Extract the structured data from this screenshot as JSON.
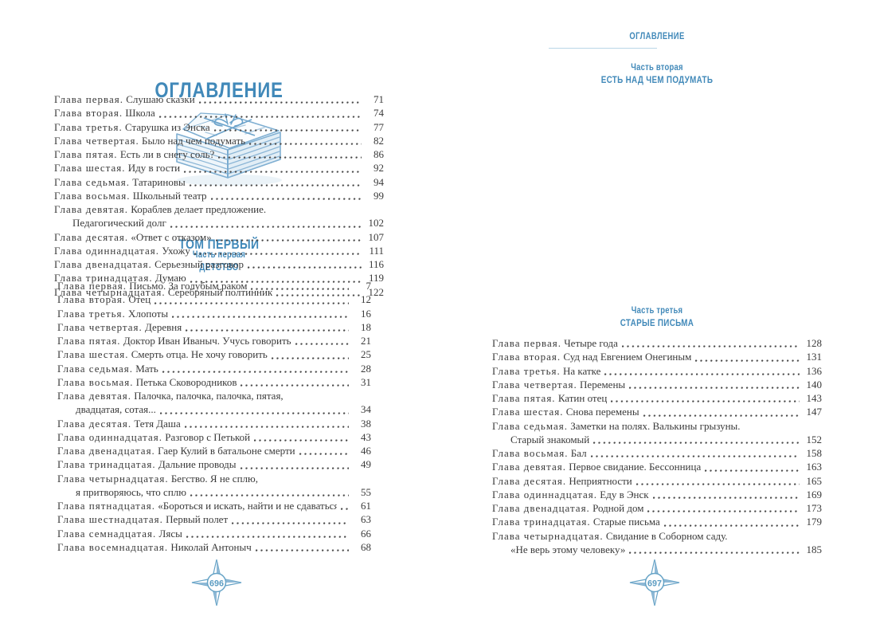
{
  "colors": {
    "heading_blue": "#4189b9",
    "body_text": "#3a3a3a",
    "ornament_blue": "#66a3c6",
    "underline_blue": "#b9d6e6",
    "illustration_blue": "#7fafd2"
  },
  "left_page": {
    "title": "ОГЛАВЛЕНИЕ",
    "illustration": "stack-of-letters-tied-with-string",
    "volume_title": "ТОМ ПЕРВЫЙ",
    "part": {
      "label": "Часть первая",
      "title": "ДЕТСТВО"
    },
    "entries": [
      {
        "label": "Глава первая.",
        "title": "Письмо. За голубым раком",
        "page": "7"
      },
      {
        "label": "Глава вторая.",
        "title": "Отец",
        "page": "12"
      },
      {
        "label": "Глава третья.",
        "title": "Хлопоты",
        "page": "16"
      },
      {
        "label": "Глава четвертая.",
        "title": "Деревня",
        "page": "18"
      },
      {
        "label": "Глава пятая.",
        "title": "Доктор Иван Иваныч. Учусь говорить",
        "page": "21"
      },
      {
        "label": "Глава шестая.",
        "title": "Смерть отца. Не хочу говорить",
        "page": "25"
      },
      {
        "label": "Глава седьмая.",
        "title": "Мать",
        "page": "28"
      },
      {
        "label": "Глава восьмая.",
        "title": "Петька Сковородников",
        "page": "31"
      },
      {
        "label": "Глава девятая.",
        "title": "Палочка, палочка, палочка, пятая,",
        "title2": "двадцатая, сотая...",
        "page": "34"
      },
      {
        "label": "Глава десятая.",
        "title": "Тетя Даша",
        "page": "38"
      },
      {
        "label": "Глава одиннадцатая.",
        "title": "Разговор с Петькой",
        "page": "43"
      },
      {
        "label": "Глава двенадцатая.",
        "title": "Гаер Кулий в батальоне смерти",
        "page": "46"
      },
      {
        "label": "Глава тринадцатая.",
        "title": "Дальние проводы",
        "page": "49"
      },
      {
        "label": "Глава четырнадцатая.",
        "title": "Бегство. Я не сплю,",
        "title2": "я притворяюсь, что сплю",
        "page": "55"
      },
      {
        "label": "Глава пятнадцатая.",
        "title": "«Бороться и искать, найти и не сдаваться»",
        "page": "61"
      },
      {
        "label": "Глава шестнадцатая.",
        "title": "Первый полет",
        "page": "63"
      },
      {
        "label": "Глава семнадцатая.",
        "title": "Лясы",
        "page": "66"
      },
      {
        "label": "Глава восемнадцатая.",
        "title": "Николай Антоныч",
        "page": "68"
      }
    ],
    "folio": "696"
  },
  "right_page": {
    "running_head": "ОГЛАВЛЕНИЕ",
    "part2": {
      "label": "Часть вторая",
      "title": "ЕСТЬ НАД ЧЕМ ПОДУМАТЬ",
      "entries": [
        {
          "label": "Глава первая.",
          "title": "Слушаю сказки",
          "page": "71"
        },
        {
          "label": "Глава вторая.",
          "title": "Школа",
          "page": "74"
        },
        {
          "label": "Глава третья.",
          "title": "Старушка из Энска",
          "page": "77"
        },
        {
          "label": "Глава четвертая.",
          "title": "Было над чем подумать",
          "page": "82"
        },
        {
          "label": "Глава пятая.",
          "title": "Есть ли в снегу соль?",
          "page": "86"
        },
        {
          "label": "Глава шестая.",
          "title": "Иду в гости",
          "page": "92"
        },
        {
          "label": "Глава седьмая.",
          "title": "Татариновы",
          "page": "94"
        },
        {
          "label": "Глава восьмая.",
          "title": "Школьный театр",
          "page": "99"
        },
        {
          "label": "Глава девятая.",
          "title": "Кораблев делает предложение.",
          "title2": "Педагогический долг",
          "page": "102"
        },
        {
          "label": "Глава десятая.",
          "title": "«Ответ с отказом»",
          "page": "107"
        },
        {
          "label": "Глава одиннадцатая.",
          "title": "Ухожу",
          "page": "111"
        },
        {
          "label": "Глава двенадцатая.",
          "title": "Серьезный разговор",
          "page": "116"
        },
        {
          "label": "Глава тринадцатая.",
          "title": "Думаю",
          "page": "119"
        },
        {
          "label": "Глава четырнадцатая.",
          "title": "Серебряный полтинник",
          "page": "122"
        }
      ]
    },
    "part3": {
      "label": "Часть третья",
      "title": "СТАРЫЕ ПИСЬМА",
      "entries": [
        {
          "label": "Глава первая.",
          "title": "Четыре года",
          "page": "128"
        },
        {
          "label": "Глава вторая.",
          "title": "Суд над Евгением Онегиным",
          "page": "131"
        },
        {
          "label": "Глава третья.",
          "title": "На катке",
          "page": "136"
        },
        {
          "label": "Глава четвертая.",
          "title": "Перемены",
          "page": "140"
        },
        {
          "label": "Глава пятая.",
          "title": "Катин отец",
          "page": "143"
        },
        {
          "label": "Глава шестая.",
          "title": "Снова перемены",
          "page": "147"
        },
        {
          "label": "Глава седьмая.",
          "title": "Заметки на полях. Валькины грызуны.",
          "title2": "Старый знакомый",
          "page": "152"
        },
        {
          "label": "Глава восьмая.",
          "title": "Бал",
          "page": "158"
        },
        {
          "label": "Глава девятая.",
          "title": "Первое свидание. Бессонница",
          "page": "163"
        },
        {
          "label": "Глава десятая.",
          "title": "Неприятности",
          "page": "165"
        },
        {
          "label": "Глава одиннадцатая.",
          "title": "Еду в Энск",
          "page": "169"
        },
        {
          "label": "Глава двенадцатая.",
          "title": "Родной дом",
          "page": "173"
        },
        {
          "label": "Глава тринадцатая.",
          "title": "Старые письма",
          "page": "179"
        },
        {
          "label": "Глава четырнадцатая.",
          "title": "Свидание в Соборном саду.",
          "title2": "«Не верь этому человеку»",
          "page": "185"
        }
      ]
    },
    "folio": "697"
  }
}
